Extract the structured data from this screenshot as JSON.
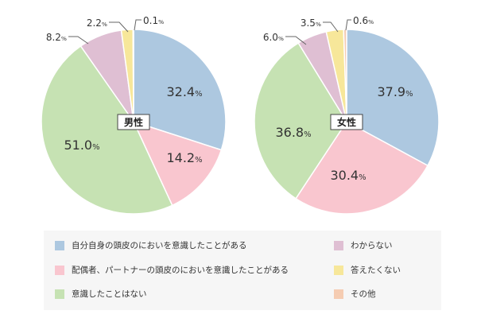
{
  "chart_data": [
    {
      "type": "pie",
      "title": "男性",
      "categories": [
        "自分自身の頭皮のにおいを意識したことがある",
        "配偶者、パートナーの頭皮のにおいを意識したことがある",
        "意識したことはない",
        "わからない",
        "答えたくない",
        "その他"
      ],
      "values": [
        32.4,
        14.2,
        51.0,
        8.2,
        2.2,
        0.1
      ],
      "labels": [
        "32.4",
        "14.2",
        "51.0",
        "8.2",
        "2.2",
        "0.1"
      ],
      "unit": "%"
    },
    {
      "type": "pie",
      "title": "女性",
      "categories": [
        "自分自身の頭皮のにおいを意識したことがある",
        "配偶者、パートナーの頭皮のにおいを意識したことがある",
        "意識したことはない",
        "わからない",
        "答えたくない",
        "その他"
      ],
      "values": [
        37.9,
        30.4,
        36.8,
        6.0,
        3.5,
        0.6
      ],
      "labels": [
        "37.9",
        "30.4",
        "36.8",
        "6.0",
        "3.5",
        "0.6"
      ],
      "unit": "%"
    }
  ],
  "legend": [
    {
      "label": "自分自身の頭皮のにおいを意識したことがある",
      "color": "#adc8e0"
    },
    {
      "label": "配偶者、パートナーの頭皮のにおいを意識したことがある",
      "color": "#f9c6cf"
    },
    {
      "label": "意識したことはない",
      "color": "#c6e2b3"
    },
    {
      "label": "わからない",
      "color": "#dfbfd3"
    },
    {
      "label": "答えたくない",
      "color": "#f7e79a"
    },
    {
      "label": "その他",
      "color": "#f5ccb2"
    }
  ]
}
